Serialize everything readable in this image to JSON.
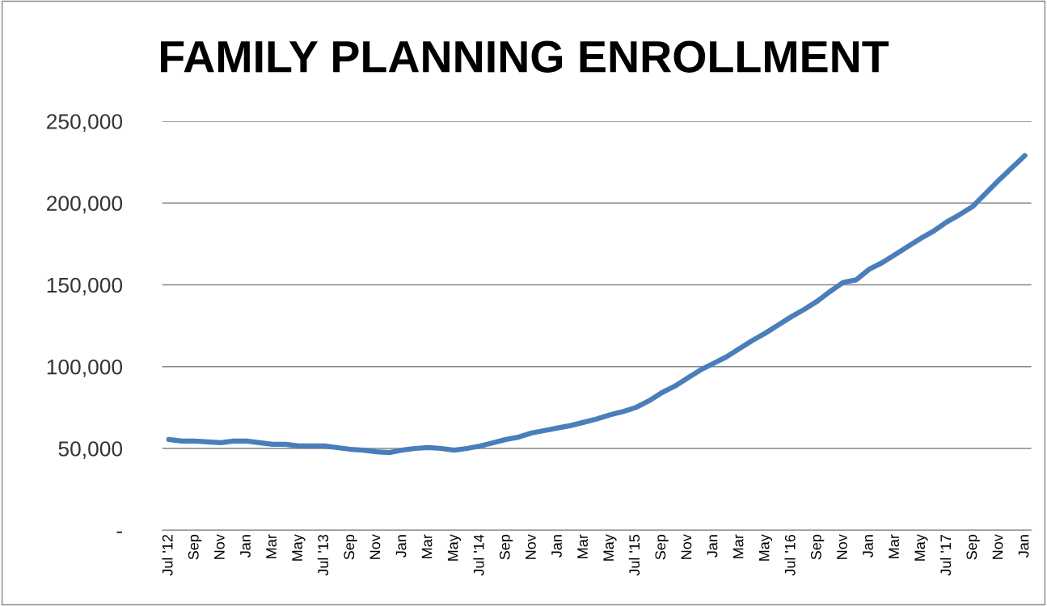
{
  "chart_data": {
    "type": "line",
    "title": "FAMILY PLANNING ENROLLMENT",
    "categories": [
      "Jul '12",
      null,
      "Sep",
      null,
      "Nov",
      null,
      "Jan",
      null,
      "Mar",
      null,
      "May",
      null,
      "Jul '13",
      null,
      "Sep",
      null,
      "Nov",
      null,
      "Jan",
      null,
      "Mar",
      null,
      "May",
      null,
      "Jul '14",
      null,
      "Sep",
      null,
      "Nov",
      null,
      "Jan",
      null,
      "Mar",
      null,
      "May",
      null,
      "Jul '15",
      null,
      "Sep",
      null,
      "Nov",
      null,
      "Jan",
      null,
      "Mar",
      null,
      "May",
      null,
      "Jul '16",
      null,
      "Sep",
      null,
      "Nov",
      null,
      "Jan",
      null,
      "Mar",
      null,
      "May",
      null,
      "Jul '17",
      null,
      "Sep",
      null,
      "Nov",
      null,
      "Jan"
    ],
    "series": [
      {
        "color": "#4a7ebb",
        "values": [
          55500,
          54500,
          54500,
          54000,
          53500,
          54500,
          54500,
          53500,
          52500,
          52500,
          51500,
          51500,
          51500,
          50500,
          49500,
          49000,
          48000,
          47500,
          49000,
          50000,
          50500,
          50000,
          49000,
          50000,
          51500,
          53500,
          55500,
          57000,
          59500,
          61000,
          62500,
          64000,
          66000,
          68000,
          70500,
          72500,
          75000,
          79000,
          84000,
          88000,
          93000,
          98000,
          102000,
          106000,
          111000,
          116000,
          120500,
          125500,
          130500,
          135000,
          140000,
          146000,
          151500,
          153000,
          159500,
          163500,
          168500,
          173500,
          178500,
          183000,
          188500,
          193000,
          198000,
          206000,
          214000,
          221500,
          229000
        ]
      }
    ],
    "ylim": [
      0,
      250000
    ],
    "yticks": [
      {
        "value": 0,
        "label": "-"
      },
      {
        "value": 50000,
        "label": "50,000"
      },
      {
        "value": 100000,
        "label": "100,000"
      },
      {
        "value": 150000,
        "label": "150,000"
      },
      {
        "value": 200000,
        "label": "200,000"
      },
      {
        "value": 250000,
        "label": "250,000"
      }
    ],
    "grid": "y",
    "legend": false,
    "marker": "none",
    "line_style": "solid"
  }
}
